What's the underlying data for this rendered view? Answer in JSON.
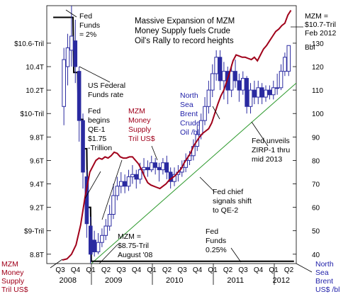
{
  "chart_data": {
    "type": "line",
    "title": "Massive Expansion of MZM Money Supply fuels Crude Oil's Rally to record heights",
    "x_quarters": [
      "Q3",
      "Q4",
      "Q1",
      "Q2",
      "Q3",
      "Q4",
      "Q1",
      "Q2",
      "Q3",
      "Q4",
      "Q1",
      "Q2",
      "Q3",
      "Q4",
      "Q1",
      "Q2"
    ],
    "x_years": [
      {
        "label": "2008",
        "span": [
          0,
          1
        ]
      },
      {
        "label": "2009",
        "span": [
          2,
          5
        ]
      },
      {
        "label": "2010",
        "span": [
          6,
          9
        ]
      },
      {
        "label": "2011",
        "span": [
          10,
          13
        ]
      },
      {
        "label": "2012",
        "span": [
          14,
          15
        ]
      }
    ],
    "left_axis": {
      "label": "MZM Money Supply Tril US$",
      "ylim": [
        8.72,
        10.92
      ],
      "ticks": [
        {
          "value": 8.8,
          "label": "8.8T"
        },
        {
          "value": 9.0,
          "label": "$9-Tril"
        },
        {
          "value": 9.2,
          "label": "9.2T"
        },
        {
          "value": 9.4,
          "label": "9.4T"
        },
        {
          "value": 9.6,
          "label": "9.6T"
        },
        {
          "value": 9.8,
          "label": "9.8T"
        },
        {
          "value": 10.0,
          "label": "$10-Tril"
        },
        {
          "value": 10.2,
          "label": "10.2T"
        },
        {
          "value": 10.4,
          "label": "10.4T"
        },
        {
          "value": 10.6,
          "label": "$10.6-Tril"
        }
      ]
    },
    "right_axis": {
      "label": "North Sea Brent US$ /bbl",
      "unit_label": "Bbl",
      "ylim": [
        36,
        146
      ],
      "ticks": [
        40,
        50,
        60,
        70,
        80,
        90,
        100,
        110,
        120,
        130
      ]
    },
    "series": [
      {
        "name": "MZM Money Supply Tril US$",
        "axis": "left",
        "color": "#a0001a",
        "x": [
          0.0,
          0.3,
          0.6,
          0.9,
          1.2,
          1.5,
          1.8,
          2.0,
          2.2,
          2.4,
          2.6,
          2.8,
          3.0,
          3.2,
          3.4,
          3.6,
          3.8,
          4.0,
          4.2,
          4.4,
          4.6,
          4.8,
          5.0,
          5.2,
          5.4,
          5.6,
          5.8,
          6.0,
          6.2,
          6.4,
          6.6,
          6.8,
          7.0,
          7.2,
          7.4,
          7.6,
          7.8,
          8.0,
          8.2,
          8.4,
          8.6,
          8.8,
          9.0,
          9.2,
          9.4,
          9.6,
          9.8,
          10.0,
          10.2,
          10.4,
          10.6,
          10.8,
          11.0,
          11.2,
          11.4,
          11.6,
          11.8,
          12.0,
          12.2,
          12.4,
          12.6,
          12.8,
          13.0,
          13.2,
          13.4,
          13.6,
          13.8,
          14.0,
          14.2,
          14.4,
          14.6,
          14.8,
          15.0
        ],
        "values": [
          8.75,
          8.76,
          8.8,
          8.88,
          9.05,
          9.3,
          9.5,
          9.55,
          9.6,
          9.62,
          9.61,
          9.63,
          9.62,
          9.64,
          9.67,
          9.66,
          9.63,
          9.62,
          9.62,
          9.63,
          9.63,
          9.6,
          9.57,
          9.52,
          9.46,
          9.41,
          9.39,
          9.38,
          9.37,
          9.36,
          9.38,
          9.4,
          9.43,
          9.45,
          9.47,
          9.5,
          9.53,
          9.58,
          9.62,
          9.66,
          9.72,
          9.76,
          9.8,
          9.83,
          9.85,
          9.87,
          9.92,
          10.0,
          10.08,
          10.15,
          10.2,
          10.28,
          10.36,
          10.45,
          10.5,
          10.49,
          10.48,
          10.48,
          10.47,
          10.46,
          10.48,
          10.45,
          10.5,
          10.55,
          10.58,
          10.62,
          10.66,
          10.7,
          10.72,
          10.75,
          10.77,
          10.84,
          10.88
        ]
      },
      {
        "name": "North Sea Brent Crude Oil /bl",
        "axis": "right",
        "type": "candlestick",
        "candles": [
          {
            "x": 0.1,
            "o": 103,
            "c": 123,
            "h": 128,
            "l": 95
          },
          {
            "x": 0.35,
            "o": 120,
            "c": 128,
            "h": 134,
            "l": 112
          },
          {
            "x": 0.6,
            "o": 127,
            "c": 133,
            "h": 146,
            "l": 120
          },
          {
            "x": 0.85,
            "o": 131,
            "c": 120,
            "h": 140,
            "l": 113
          },
          {
            "x": 1.1,
            "o": 118,
            "c": 97,
            "h": 120,
            "l": 88
          },
          {
            "x": 1.35,
            "o": 97,
            "c": 75,
            "h": 100,
            "l": 68
          },
          {
            "x": 1.6,
            "o": 73,
            "c": 53,
            "h": 76,
            "l": 47
          },
          {
            "x": 1.85,
            "o": 52,
            "c": 40,
            "h": 56,
            "l": 36
          },
          {
            "x": 2.1,
            "o": 46,
            "c": 41,
            "h": 50,
            "l": 39
          },
          {
            "x": 2.35,
            "o": 41,
            "c": 45,
            "h": 49,
            "l": 40
          },
          {
            "x": 2.6,
            "o": 45,
            "c": 48,
            "h": 51,
            "l": 43
          },
          {
            "x": 2.85,
            "o": 48,
            "c": 52,
            "h": 55,
            "l": 46
          },
          {
            "x": 3.1,
            "o": 52,
            "c": 57,
            "h": 61,
            "l": 50
          },
          {
            "x": 3.35,
            "o": 57,
            "c": 65,
            "h": 70,
            "l": 55
          },
          {
            "x": 3.6,
            "o": 65,
            "c": 69,
            "h": 73,
            "l": 63
          },
          {
            "x": 3.85,
            "o": 69,
            "c": 71,
            "h": 75,
            "l": 66
          },
          {
            "x": 4.1,
            "o": 71,
            "c": 69,
            "h": 74,
            "l": 66
          },
          {
            "x": 4.35,
            "o": 69,
            "c": 73,
            "h": 76,
            "l": 67
          },
          {
            "x": 4.6,
            "o": 73,
            "c": 74,
            "h": 78,
            "l": 70
          },
          {
            "x": 4.85,
            "o": 74,
            "c": 72,
            "h": 76,
            "l": 68
          },
          {
            "x": 5.1,
            "o": 72,
            "c": 76,
            "h": 79,
            "l": 70
          },
          {
            "x": 5.35,
            "o": 76,
            "c": 77,
            "h": 81,
            "l": 74
          },
          {
            "x": 5.6,
            "o": 77,
            "c": 76,
            "h": 80,
            "l": 73
          },
          {
            "x": 5.85,
            "o": 76,
            "c": 79,
            "h": 82,
            "l": 75
          },
          {
            "x": 6.1,
            "o": 79,
            "c": 77,
            "h": 81,
            "l": 74
          },
          {
            "x": 6.35,
            "o": 77,
            "c": 76,
            "h": 79,
            "l": 71
          },
          {
            "x": 6.6,
            "o": 76,
            "c": 79,
            "h": 81,
            "l": 74
          },
          {
            "x": 6.85,
            "o": 79,
            "c": 75,
            "h": 82,
            "l": 72
          },
          {
            "x": 7.1,
            "o": 75,
            "c": 71,
            "h": 77,
            "l": 68
          },
          {
            "x": 7.35,
            "o": 71,
            "c": 74,
            "h": 77,
            "l": 69
          },
          {
            "x": 7.6,
            "o": 74,
            "c": 75,
            "h": 78,
            "l": 71
          },
          {
            "x": 7.85,
            "o": 75,
            "c": 77,
            "h": 80,
            "l": 73
          },
          {
            "x": 8.1,
            "o": 77,
            "c": 80,
            "h": 83,
            "l": 75
          },
          {
            "x": 8.35,
            "o": 80,
            "c": 82,
            "h": 84,
            "l": 78
          },
          {
            "x": 8.6,
            "o": 82,
            "c": 86,
            "h": 89,
            "l": 80
          },
          {
            "x": 8.85,
            "o": 86,
            "c": 91,
            "h": 95,
            "l": 84
          },
          {
            "x": 9.1,
            "o": 91,
            "c": 97,
            "h": 100,
            "l": 89
          },
          {
            "x": 9.35,
            "o": 97,
            "c": 103,
            "h": 107,
            "l": 95
          },
          {
            "x": 9.6,
            "o": 103,
            "c": 110,
            "h": 114,
            "l": 100
          },
          {
            "x": 9.85,
            "o": 110,
            "c": 117,
            "h": 121,
            "l": 107
          },
          {
            "x": 10.1,
            "o": 117,
            "c": 124,
            "h": 127,
            "l": 114
          },
          {
            "x": 10.35,
            "o": 124,
            "c": 114,
            "h": 127,
            "l": 110
          },
          {
            "x": 10.6,
            "o": 114,
            "c": 118,
            "h": 122,
            "l": 106
          },
          {
            "x": 10.85,
            "o": 118,
            "c": 110,
            "h": 120,
            "l": 104
          },
          {
            "x": 11.1,
            "o": 110,
            "c": 118,
            "h": 121,
            "l": 107
          },
          {
            "x": 11.35,
            "o": 118,
            "c": 114,
            "h": 123,
            "l": 111
          },
          {
            "x": 11.6,
            "o": 114,
            "c": 110,
            "h": 117,
            "l": 105
          },
          {
            "x": 11.85,
            "o": 110,
            "c": 115,
            "h": 118,
            "l": 108
          },
          {
            "x": 12.1,
            "o": 115,
            "c": 103,
            "h": 116,
            "l": 100
          },
          {
            "x": 12.35,
            "o": 103,
            "c": 110,
            "h": 113,
            "l": 100
          },
          {
            "x": 12.6,
            "o": 110,
            "c": 107,
            "h": 114,
            "l": 104
          },
          {
            "x": 12.85,
            "o": 107,
            "c": 111,
            "h": 114,
            "l": 104
          },
          {
            "x": 13.1,
            "o": 111,
            "c": 107,
            "h": 113,
            "l": 104
          },
          {
            "x": 13.35,
            "o": 107,
            "c": 110,
            "h": 112,
            "l": 105
          },
          {
            "x": 13.6,
            "o": 110,
            "c": 108,
            "h": 112,
            "l": 106
          },
          {
            "x": 13.85,
            "o": 108,
            "c": 111,
            "h": 114,
            "l": 106
          },
          {
            "x": 14.1,
            "o": 111,
            "c": 111,
            "h": 117,
            "l": 108
          },
          {
            "x": 14.35,
            "o": 111,
            "c": 118,
            "h": 121,
            "l": 110
          },
          {
            "x": 14.6,
            "o": 118,
            "c": 124,
            "h": 126,
            "l": 116
          },
          {
            "x": 14.85,
            "o": 118,
            "c": 129,
            "h": 129,
            "l": 116
          }
        ]
      },
      {
        "name": "Fed Funds rate",
        "axis": "left",
        "color": "#000000",
        "points": [
          {
            "x": -0.6,
            "y": 10.82
          },
          {
            "x": 0.7,
            "y": 10.82
          },
          {
            "x": 0.75,
            "y": 10.35
          },
          {
            "x": 1.0,
            "y": 10.35
          },
          {
            "x": 1.05,
            "y": 9.95
          },
          {
            "x": 1.35,
            "y": 9.95
          },
          {
            "x": 1.4,
            "y": 9.7
          },
          {
            "x": 1.6,
            "y": 9.7
          },
          {
            "x": 1.65,
            "y": 9.2
          },
          {
            "x": 1.85,
            "y": 9.2
          },
          {
            "x": 1.9,
            "y": 8.74
          },
          {
            "x": 15.2,
            "y": 8.74
          }
        ]
      },
      {
        "name": "Trend line",
        "axis": "right",
        "color": "#2e9a2e",
        "points": [
          {
            "x": 1.9,
            "y": 36
          },
          {
            "x": 15.5,
            "y": 113
          }
        ]
      }
    ],
    "annotations": [
      {
        "id": "fed_funds_2",
        "text": [
          "Fed",
          "Funds",
          "= 2%"
        ]
      },
      {
        "id": "us_fed_funds_rate",
        "text": [
          "US Federal",
          "Funds rate"
        ]
      },
      {
        "id": "qe1",
        "text": [
          "Fed",
          "begins",
          "QE-1",
          "$1.75",
          "-Trillion"
        ]
      },
      {
        "id": "mzm_label",
        "text": [
          "MZM",
          "Money",
          "Supply",
          "Tril US$"
        ]
      },
      {
        "id": "brent_label",
        "text": [
          "North",
          "Sea",
          "Brent",
          "Crude",
          "Oil /bl"
        ]
      },
      {
        "id": "mzm_feb2012",
        "text": [
          "MZM =",
          "$10.7-Tril",
          "Feb 2012"
        ]
      },
      {
        "id": "zirp",
        "text": [
          "Fed unveils",
          "ZIRP-1 thru",
          "mid 2013"
        ]
      },
      {
        "id": "qe2",
        "text": [
          "Fed chief",
          "signals shift",
          "to QE-2"
        ]
      },
      {
        "id": "mzm_aug08",
        "text": [
          "MZM =",
          "$8.75-Tril",
          "August '08"
        ]
      },
      {
        "id": "fed_funds_025",
        "text": [
          "Fed",
          "Funds",
          "0.25%"
        ]
      },
      {
        "id": "bottom_left",
        "text": [
          "MZM",
          "Money",
          "Supply",
          "Tril US$"
        ]
      },
      {
        "id": "bottom_right",
        "text": [
          "North",
          "Sea",
          "Brent",
          "US$ /bl"
        ]
      }
    ],
    "colors": {
      "mzm": "#a0001a",
      "brent_label": "#2222aa",
      "candle": "#2a2aa0",
      "fed_funds": "#000000",
      "trend": "#2e9a2e",
      "grid": "#d0d0d0",
      "text": "#000000"
    },
    "grid": true
  }
}
